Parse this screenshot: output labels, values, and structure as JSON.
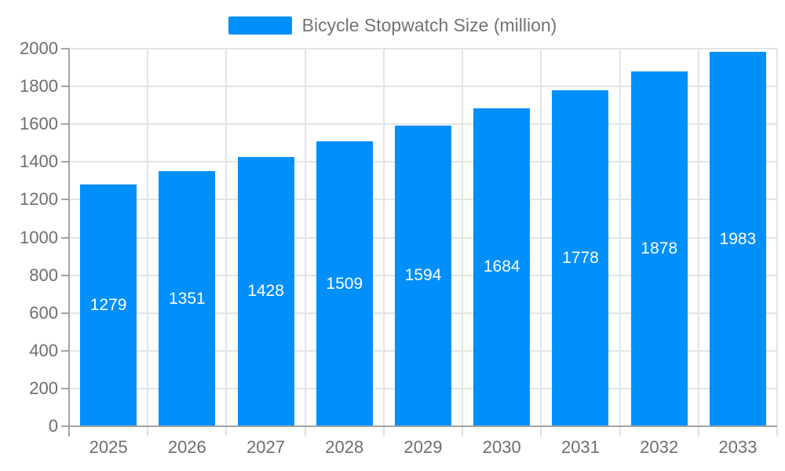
{
  "chart_data": {
    "type": "bar",
    "title": "Bicycle Stopwatch Size (million)",
    "series": [
      {
        "name": "Bicycle Stopwatch Size (million)",
        "values": [
          1279,
          1351,
          1428,
          1509,
          1594,
          1684,
          1778,
          1878,
          1983
        ]
      }
    ],
    "categories": [
      "2025",
      "2026",
      "2027",
      "2028",
      "2029",
      "2030",
      "2031",
      "2032",
      "2033"
    ],
    "xlabel": "",
    "ylabel": "",
    "ylim": [
      0,
      2000
    ],
    "ytick_step": 200,
    "yticks": [
      "0",
      "200",
      "400",
      "600",
      "800",
      "1000",
      "1200",
      "1400",
      "1600",
      "1800",
      "2000"
    ],
    "grid": "on",
    "legend_position": "top-center",
    "data_labels": "white, centered inside bars",
    "colors": {
      "bar": "#008FFB",
      "bar_label": "#FFFFFF",
      "axis_label": "#6e6e6e",
      "legend_text": "#737373",
      "gridline": "#e4e4e4",
      "axis_line": "#a3a3a3"
    }
  }
}
